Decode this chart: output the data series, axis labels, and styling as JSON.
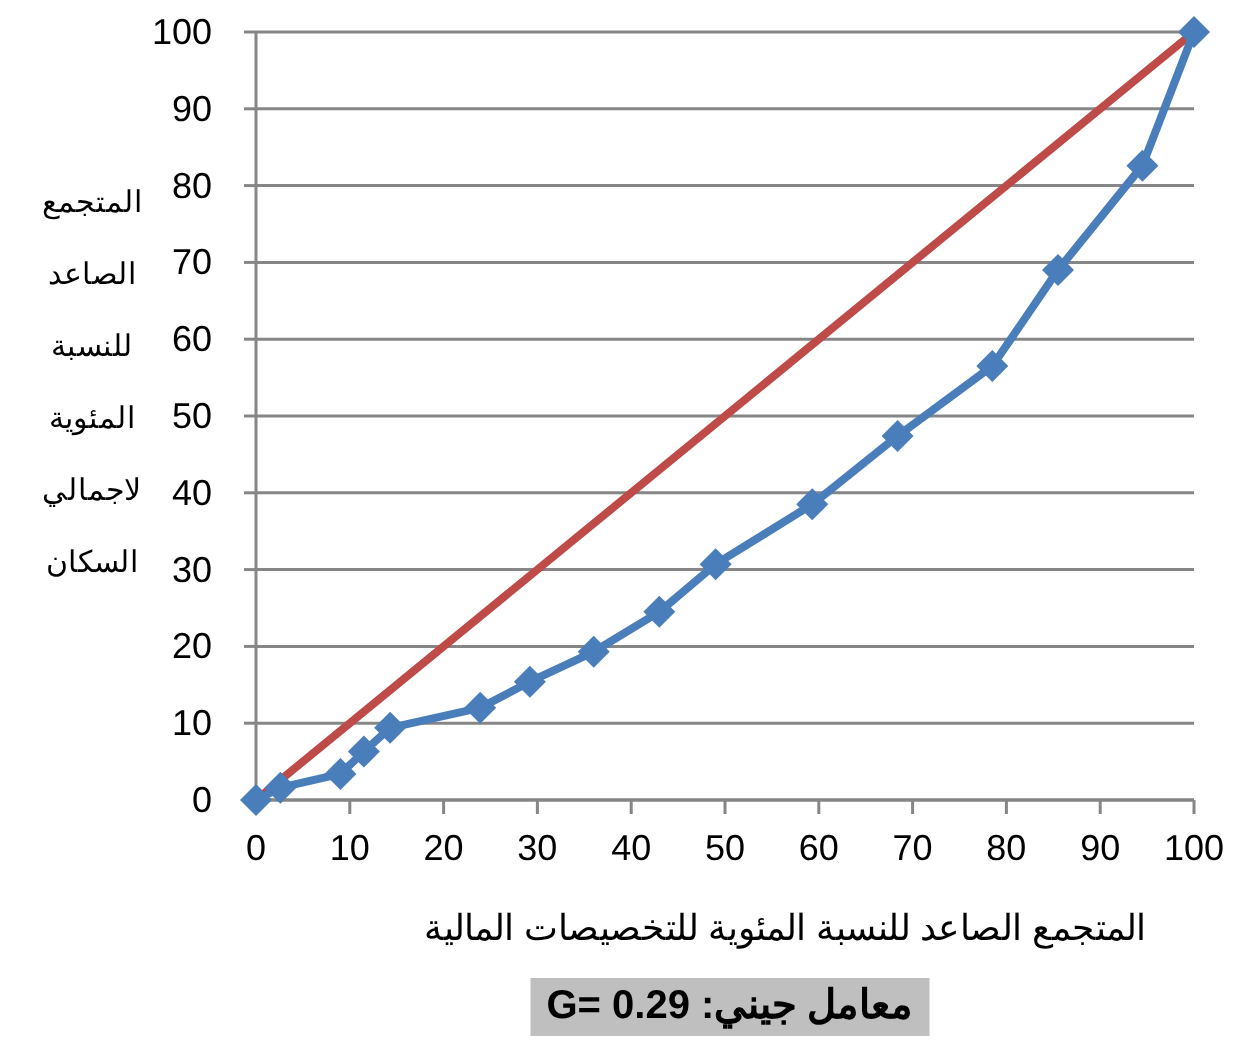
{
  "chart_data": {
    "type": "line",
    "xlabel": "المتجمع الصاعد للنسبة المئوية للتخصيصات المالية",
    "ylabel": "المتجمع الصاعد للنسبة المئوية لاجمالي السكان",
    "annotations": [
      "معامل جيني: G= 0.29"
    ],
    "xlim": [
      0,
      100
    ],
    "ylim": [
      0,
      100
    ],
    "xticks": [
      0,
      10,
      20,
      30,
      40,
      50,
      60,
      70,
      80,
      90,
      100
    ],
    "yticks": [
      0,
      10,
      20,
      30,
      40,
      50,
      60,
      70,
      80,
      90,
      100
    ],
    "grid": "y",
    "series": [
      {
        "color": "#be4b48",
        "marker": "none",
        "x": [
          0,
          100
        ],
        "values": [
          0,
          100
        ]
      },
      {
        "color": "#4a7ebb",
        "marker": "diamond",
        "x": [
          0,
          2.6,
          9,
          11.5,
          14.3,
          23.9,
          29.2,
          36,
          43,
          49,
          59.3,
          68.4,
          78.5,
          85.5,
          94.5,
          100
        ],
        "values": [
          0,
          1.6,
          3.4,
          6.3,
          9.4,
          12,
          15.4,
          19.3,
          24.5,
          30.7,
          38.5,
          47.4,
          56.5,
          69,
          82.6,
          100
        ]
      }
    ]
  }
}
